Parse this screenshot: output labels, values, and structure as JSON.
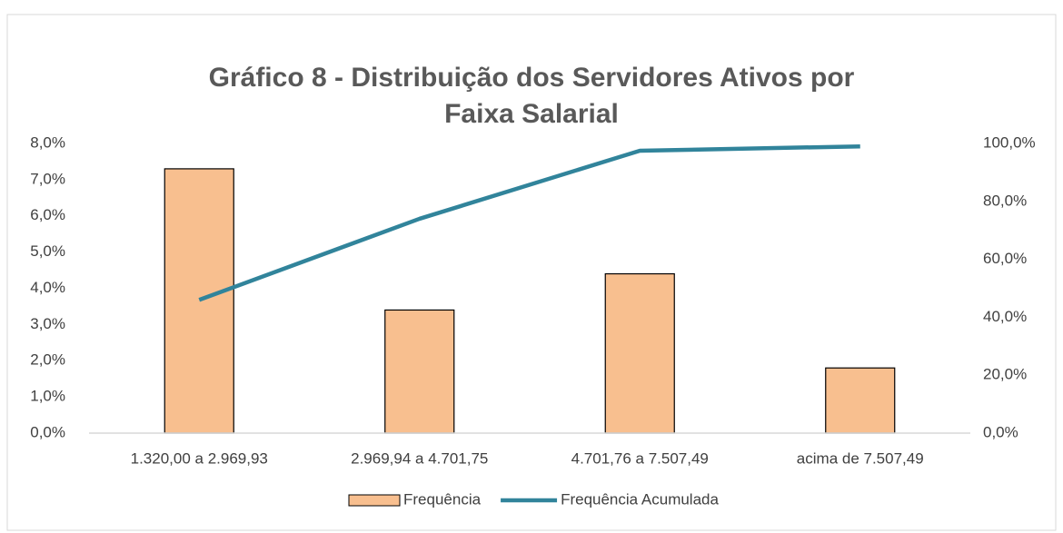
{
  "chart_data": {
    "type": "bar_line",
    "title": "Gráfico 8 - Distribuição dos Servidores Ativos por Faixa Salarial",
    "categories": [
      "1.320,00 a 2.969,93",
      "2.969,94 a 4.701,75",
      "4.701,76 a  7.507,49",
      "acima de 7.507,49"
    ],
    "series": [
      {
        "name": "Frequência",
        "type": "bar",
        "color": "#f8bf8f",
        "values": [
          7.3,
          3.4,
          4.4,
          1.8
        ]
      },
      {
        "name": "Frequência Acumulada",
        "type": "line",
        "axis": "y2",
        "color": "#31849b",
        "values": [
          46,
          74,
          97.5,
          99
        ]
      }
    ],
    "ylim": [
      0,
      8
    ],
    "yticks": [
      {
        "value": 0,
        "label": "0,0%"
      },
      {
        "value": 1,
        "label": "1,0%"
      },
      {
        "value": 2,
        "label": "2,0%"
      },
      {
        "value": 3,
        "label": "3,0%"
      },
      {
        "value": 4,
        "label": "4,0%"
      },
      {
        "value": 5,
        "label": "5,0%"
      },
      {
        "value": 6,
        "label": "6,0%"
      },
      {
        "value": 7,
        "label": "7,0%"
      },
      {
        "value": 8,
        "label": "8,0%"
      }
    ],
    "y2lim": [
      0,
      100
    ],
    "y2ticks": [
      {
        "value": 0,
        "label": "0,0%"
      },
      {
        "value": 20,
        "label": "20,0%"
      },
      {
        "value": 40,
        "label": "40,0%"
      },
      {
        "value": 60,
        "label": "60,0%"
      },
      {
        "value": 80,
        "label": "80,0%"
      },
      {
        "value": 100,
        "label": "100,0%"
      }
    ],
    "legend": "bottom",
    "grid": false
  }
}
